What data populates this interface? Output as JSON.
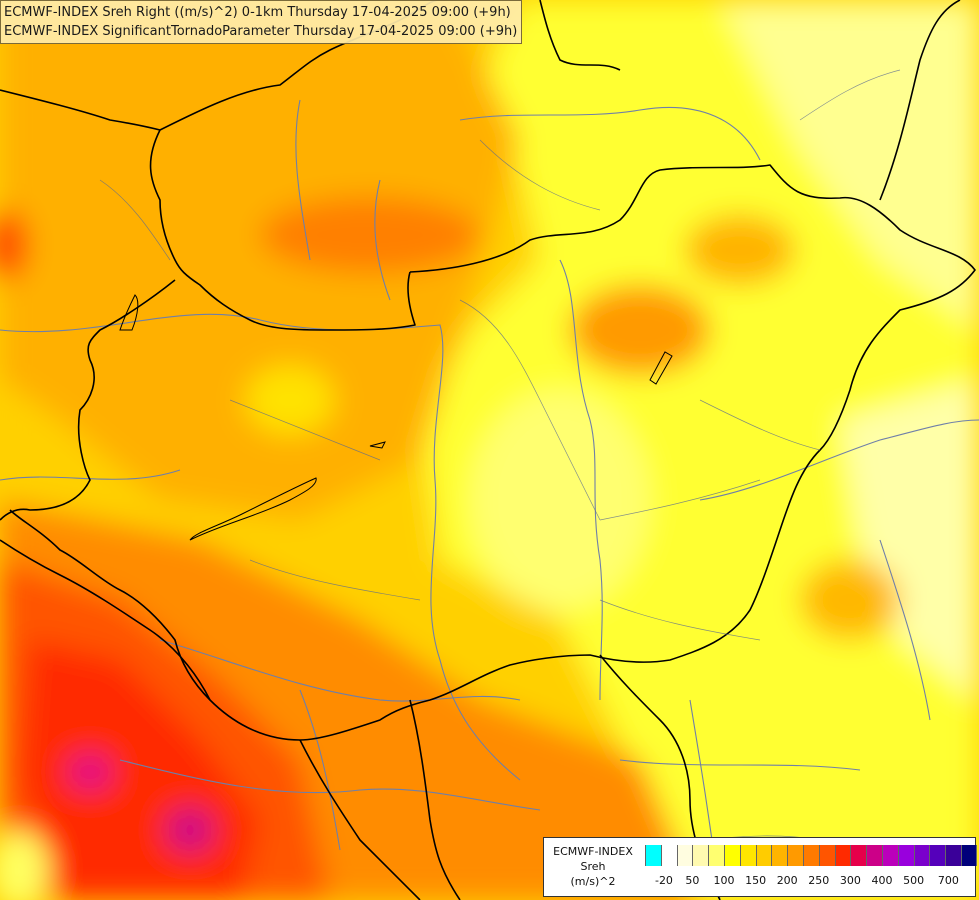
{
  "header": {
    "line1": "ECMWF-INDEX Sreh Right ((m/s)^2) 0-1km Thursday 17-04-2025 09:00 (+9h)",
    "line2": "ECMWF-INDEX SignificantTornadoParameter Thursday 17-04-2025 09:00 (+9h)"
  },
  "legend": {
    "source": "ECMWF-INDEX",
    "parameter": "Sreh",
    "unit": "(m/s)^2",
    "colors": [
      "#00ffff",
      "#ffffff",
      "#fffde0",
      "#fffab0",
      "#ffff70",
      "#ffff00",
      "#ffe600",
      "#ffcc00",
      "#ffb400",
      "#ff9a00",
      "#ff7a00",
      "#ff5500",
      "#ff2a00",
      "#e6004a",
      "#cc0088",
      "#bb00bb",
      "#9900dd",
      "#7a00cc",
      "#5500bb",
      "#3a0099",
      "#00007a"
    ],
    "tick_labels": [
      "-20",
      "50",
      "100",
      "150",
      "200",
      "250",
      "300",
      "400",
      "500",
      "700"
    ]
  },
  "palette": {
    "background": "#ffd000",
    "light": "#ffff30",
    "lighter": "#ffffa0",
    "orange": "#ffb000",
    "deep_orange": "#ff8c00",
    "red_orange": "#ff5a00",
    "red": "#ff2a00",
    "magenta": "#e0008a",
    "border_color": "#000000",
    "river_color": "#6f7fa8"
  }
}
